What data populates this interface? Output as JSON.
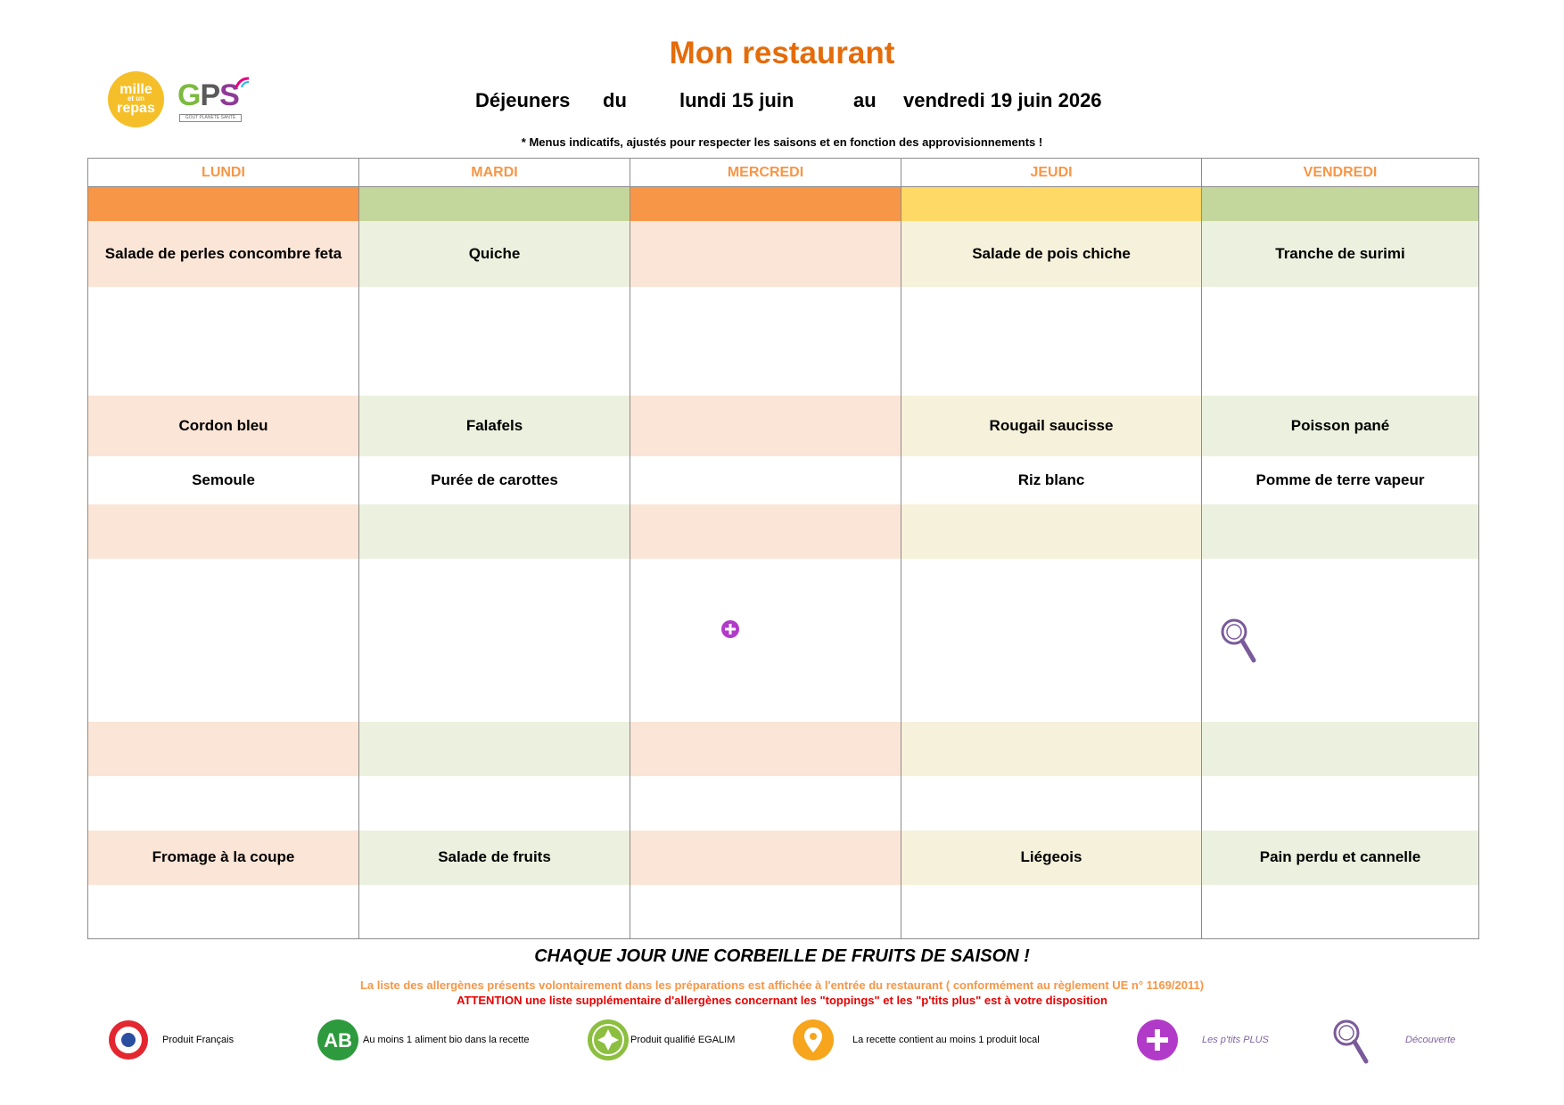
{
  "title": "Mon restaurant",
  "logos": {
    "mille_top": "mille",
    "mille_mid": "et un",
    "mille_bottom": "repas",
    "gps": "GPS",
    "gps_sub": "GOÛT PLANÈTE SANTÉ"
  },
  "period": {
    "label": "Déjeuners",
    "from_label": "du",
    "from_date": "lundi 15 juin",
    "to_label": "au",
    "to_date": "vendredi 19 juin 2026"
  },
  "note": "* Menus indicatifs, ajustés pour respecter les saisons et en fonction des approvisionnements !",
  "days": [
    "LUNDI",
    "MARDI",
    "MERCREDI",
    "JEUDI",
    "VENDREDI"
  ],
  "menu": {
    "entree": [
      "Salade de perles concombre feta",
      "Quiche",
      "",
      "Salade de pois chiche",
      "Tranche de surimi"
    ],
    "plat": [
      "Cordon bleu",
      "Falafels",
      "",
      "Rougail saucisse",
      "Poisson pané"
    ],
    "accompagnement": [
      "Semoule",
      "Purée de carottes",
      "",
      "Riz blanc",
      "Pomme de terre vapeur"
    ],
    "dessert": [
      "Fromage à la coupe",
      "Salade de fruits",
      "",
      "Liégeois",
      "Pain perdu et cannelle"
    ]
  },
  "fruits_banner": "CHAQUE JOUR UNE CORBEILLE DE FRUITS DE SAISON !",
  "allergens_line1": "La liste des allergènes présents volontairement dans les préparations est affichée à l'entrée du restaurant ( conformément au règlement UE n° 1169/2011)",
  "allergens_line2": "ATTENTION une liste supplémentaire d'allergènes concernant les \"toppings\" et les \"p'tits plus\" est à votre disposition",
  "legend": [
    {
      "icon": "french-flag-icon",
      "label": "Produit Français"
    },
    {
      "icon": "organic-ab-icon",
      "label": "Au moins 1 aliment bio dans la recette"
    },
    {
      "icon": "egalim-icon",
      "label": "Produit qualifié EGALIM"
    },
    {
      "icon": "local-pin-icon",
      "label": "La recette contient au moins 1 produit local"
    },
    {
      "icon": "ptits-plus-icon",
      "label": "Les p'tits PLUS"
    },
    {
      "icon": "discovery-icon",
      "label": "Découverte"
    }
  ],
  "colors": {
    "title": "#e46c0a",
    "day_header": "#f79646",
    "orange": "#f79646",
    "green": "#c3d69b",
    "yellow": "#ffd966",
    "red_warning": "#e60000",
    "legend_purple": "#8064a2"
  }
}
